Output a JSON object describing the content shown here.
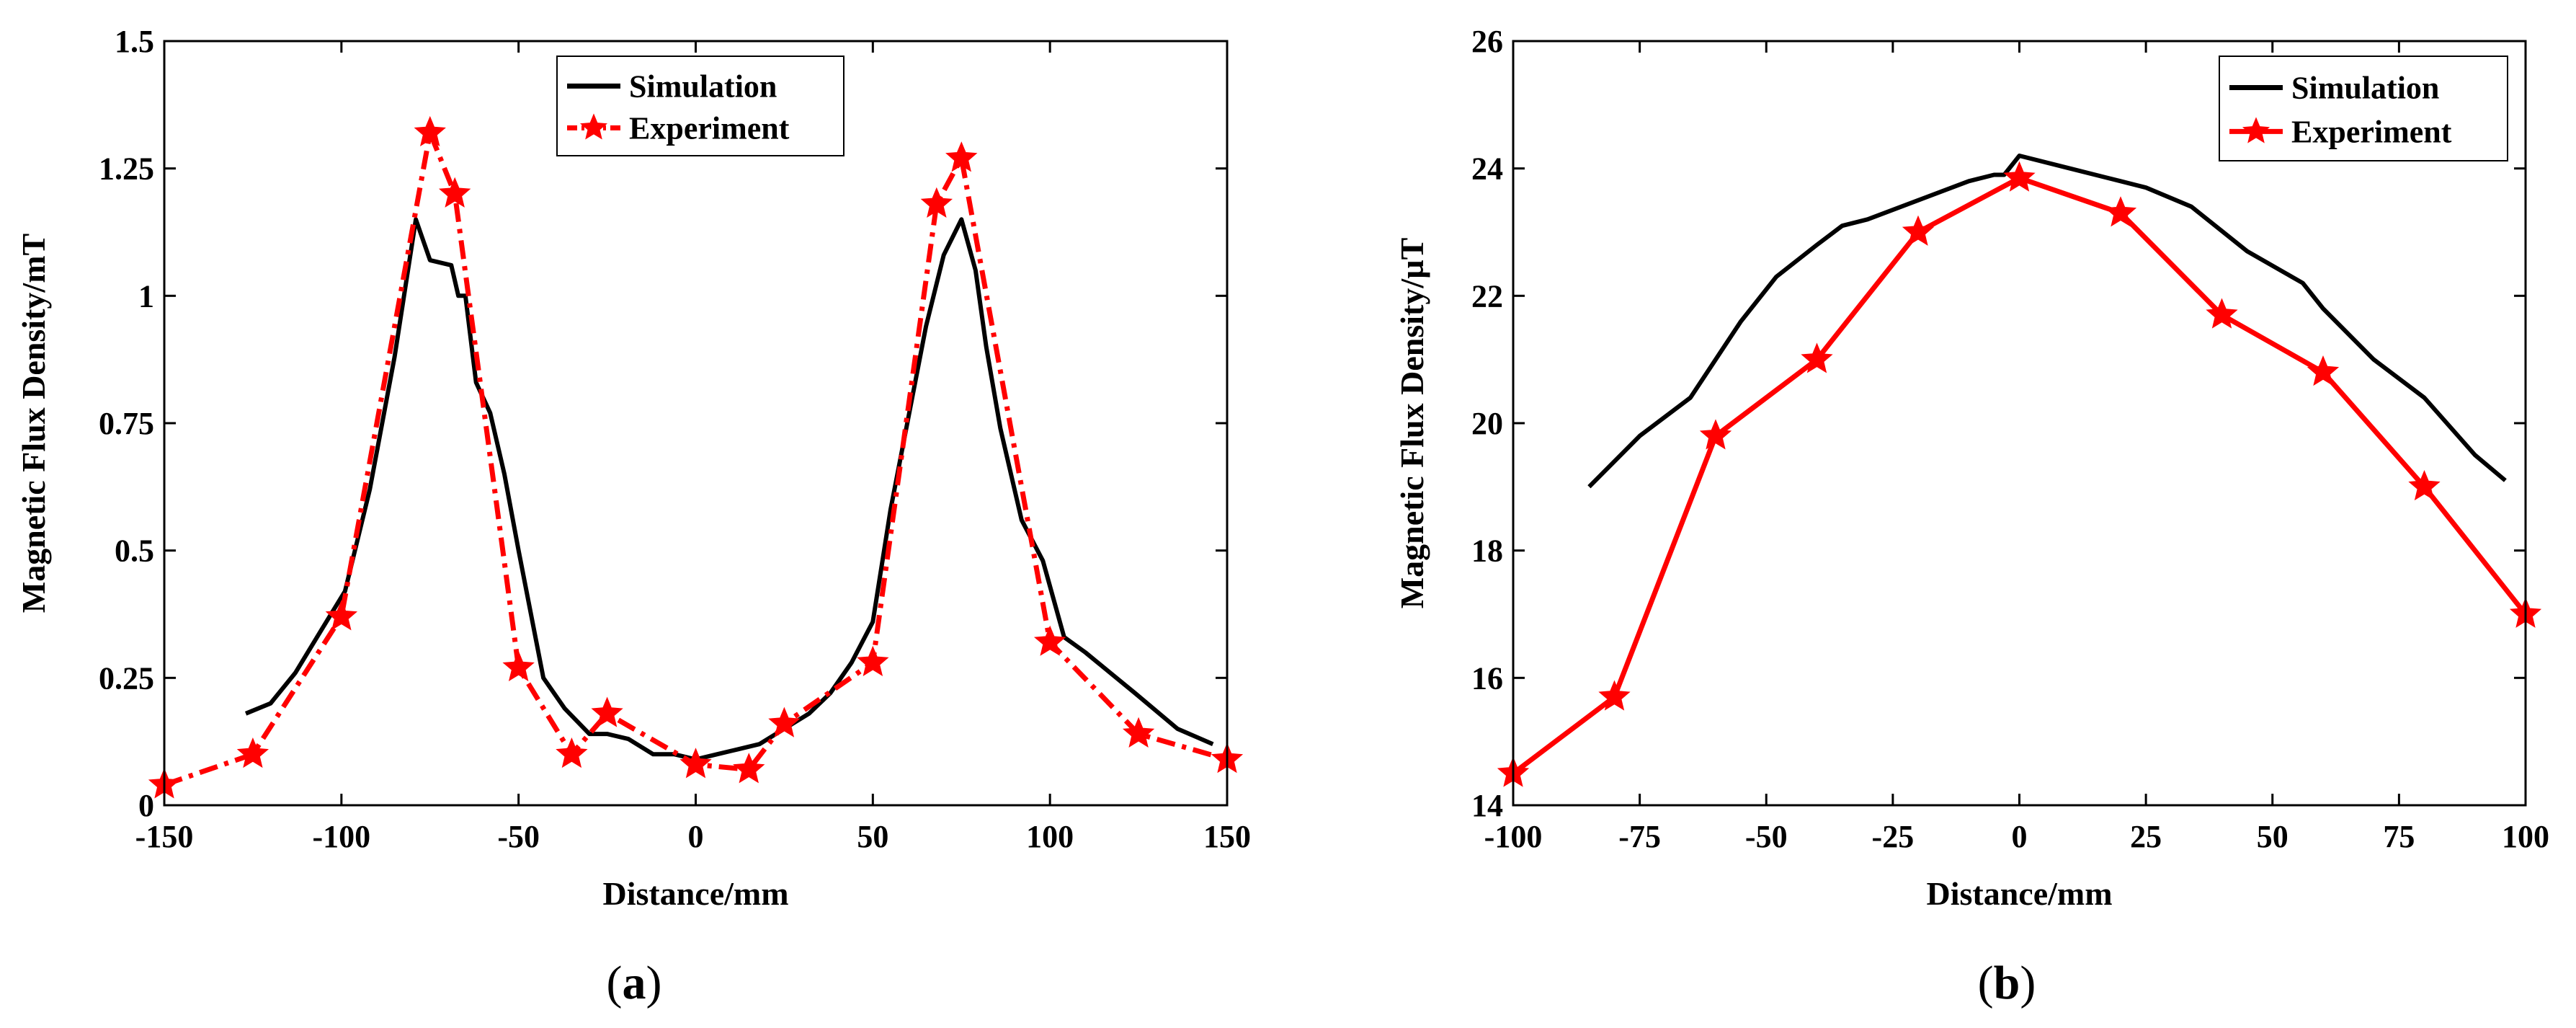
{
  "chart_data": [
    {
      "type": "line",
      "panel_label": "a",
      "xlabel": "Distance/mm",
      "ylabel": "Magnetic Flux Density/mT",
      "xlim": [
        -150,
        150
      ],
      "ylim": [
        0,
        1.5
      ],
      "xticks": [
        -150,
        -100,
        -50,
        0,
        50,
        100,
        150
      ],
      "xtick_labels": [
        "-150",
        "-100",
        "-50",
        "0",
        "50",
        "100",
        "150"
      ],
      "yticks": [
        0,
        0.25,
        0.5,
        0.75,
        1,
        1.25,
        1.5
      ],
      "ytick_labels": [
        "0",
        "0.25",
        "0.5",
        "0.75",
        "1",
        "1.25",
        "1.5"
      ],
      "legend_position": "top-center",
      "series": [
        {
          "name": "Simulation",
          "color": "#000000",
          "style": "solid",
          "marker": "none",
          "x": [
            -127,
            -120,
            -113,
            -106,
            -99,
            -92,
            -85,
            -79,
            -75,
            -69,
            -67,
            -65,
            -62,
            -58,
            -54,
            -50,
            -43,
            -37,
            -30,
            -25,
            -19,
            -12,
            -6,
            0,
            6,
            12,
            18,
            25,
            32,
            38,
            44,
            50,
            55,
            60,
            65,
            70,
            75,
            79,
            82,
            86,
            92,
            98,
            104,
            110,
            117,
            124,
            136,
            146
          ],
          "y": [
            0.18,
            0.2,
            0.26,
            0.34,
            0.42,
            0.62,
            0.88,
            1.15,
            1.07,
            1.06,
            1.0,
            1.0,
            0.83,
            0.77,
            0.65,
            0.5,
            0.25,
            0.19,
            0.14,
            0.14,
            0.13,
            0.1,
            0.1,
            0.09,
            0.1,
            0.11,
            0.12,
            0.15,
            0.18,
            0.22,
            0.28,
            0.36,
            0.58,
            0.76,
            0.94,
            1.08,
            1.15,
            1.05,
            0.9,
            0.74,
            0.56,
            0.48,
            0.33,
            0.3,
            0.26,
            0.22,
            0.15,
            0.12
          ]
        },
        {
          "name": "Experiment",
          "color": "#ff0000",
          "style": "dashdot",
          "marker": "star",
          "x": [
            -150,
            -125,
            -100,
            -75,
            -68,
            -50,
            -35,
            -25,
            0,
            15,
            25,
            50,
            68,
            75,
            100,
            125,
            150
          ],
          "y": [
            0.04,
            0.1,
            0.37,
            1.32,
            1.2,
            0.27,
            0.1,
            0.18,
            0.08,
            0.07,
            0.16,
            0.28,
            1.18,
            1.27,
            0.32,
            0.14,
            0.09
          ]
        }
      ]
    },
    {
      "type": "line",
      "panel_label": "b",
      "xlabel": "Distance/mm",
      "ylabel": "Magnetic Flux Density/µT",
      "xlim": [
        -100,
        100
      ],
      "ylim": [
        14,
        26
      ],
      "xticks": [
        -100,
        -75,
        -50,
        -25,
        0,
        25,
        50,
        75,
        100
      ],
      "xtick_labels": [
        "-100",
        "-75",
        "-50",
        "-25",
        "0",
        "25",
        "50",
        "75",
        "100"
      ],
      "yticks": [
        14,
        16,
        18,
        20,
        22,
        24,
        26
      ],
      "ytick_labels": [
        "14",
        "16",
        "18",
        "20",
        "22",
        "24",
        "26"
      ],
      "legend_position": "top-right",
      "series": [
        {
          "name": "Simulation",
          "color": "#000000",
          "style": "solid",
          "marker": "none",
          "x": [
            -85,
            -75,
            -65,
            -55,
            -48,
            -40,
            -35,
            -30,
            -20,
            -10,
            -5,
            -3,
            0,
            10,
            20,
            25,
            34,
            45,
            56,
            60,
            70,
            80,
            90,
            96
          ],
          "y": [
            19.0,
            19.8,
            20.4,
            21.6,
            22.3,
            22.8,
            23.1,
            23.2,
            23.5,
            23.8,
            23.9,
            23.9,
            24.2,
            24.0,
            23.8,
            23.7,
            23.4,
            22.7,
            22.2,
            21.8,
            21.0,
            20.4,
            19.5,
            19.1
          ]
        },
        {
          "name": "Experiment",
          "color": "#ff0000",
          "style": "solid",
          "marker": "star",
          "x": [
            -100,
            -80,
            -60,
            -40,
            -20,
            0,
            20,
            40,
            60,
            80,
            100
          ],
          "y": [
            14.5,
            15.7,
            19.8,
            21.0,
            23.0,
            23.85,
            23.3,
            21.7,
            20.8,
            19.0,
            17.0
          ]
        }
      ]
    }
  ]
}
